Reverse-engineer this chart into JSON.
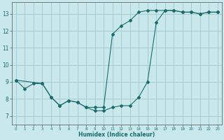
{
  "xlabel": "Humidex (Indice chaleur)",
  "xlim": [
    -0.5,
    23.5
  ],
  "ylim": [
    6.5,
    13.7
  ],
  "yticks": [
    7,
    8,
    9,
    10,
    11,
    12,
    13
  ],
  "xticks": [
    0,
    1,
    2,
    3,
    4,
    5,
    6,
    7,
    8,
    9,
    10,
    11,
    12,
    13,
    14,
    15,
    16,
    17,
    18,
    19,
    20,
    21,
    22,
    23
  ],
  "bg_color": "#c8e8ec",
  "grid_color": "#a8ccd4",
  "line_color": "#1a6b6b",
  "line1_x": [
    0,
    1,
    2,
    3,
    4,
    5,
    6,
    7,
    8,
    9,
    10,
    11,
    12,
    13,
    14,
    15,
    16,
    17,
    18,
    19,
    20,
    21,
    22,
    23
  ],
  "line1_y": [
    9.1,
    8.6,
    8.9,
    8.9,
    8.1,
    7.6,
    7.9,
    7.8,
    7.5,
    7.3,
    7.3,
    7.5,
    7.6,
    7.6,
    8.1,
    9.0,
    12.5,
    13.2,
    13.2,
    13.1,
    13.1,
    13.0,
    13.1,
    13.1
  ],
  "line2_x": [
    0,
    3,
    4,
    5,
    6,
    7,
    8,
    9,
    10,
    11,
    12,
    13,
    14,
    15,
    16,
    17,
    18,
    19,
    20,
    21,
    22,
    23
  ],
  "line2_y": [
    9.1,
    8.9,
    8.1,
    7.6,
    7.9,
    7.8,
    7.5,
    7.5,
    7.5,
    11.8,
    12.3,
    12.6,
    13.1,
    13.2,
    13.2,
    13.2,
    13.2,
    13.1,
    13.1,
    13.0,
    13.1,
    13.1
  ]
}
